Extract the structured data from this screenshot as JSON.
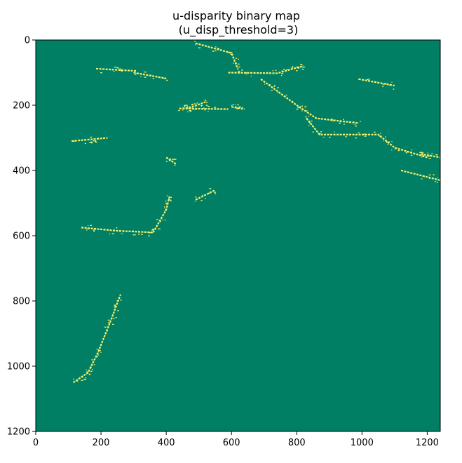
{
  "chart_data": {
    "type": "heatmap",
    "title_line1": "u-disparity binary map",
    "title_line2": "(u_disp_threshold=3)",
    "xlabel": "",
    "ylabel": "",
    "xlim": [
      0,
      1240
    ],
    "ylim": [
      1200,
      0
    ],
    "x_ticks": [
      "0",
      "200",
      "400",
      "600",
      "800",
      "1000",
      "1200"
    ],
    "y_ticks": [
      "0",
      "200",
      "400",
      "600",
      "800",
      "1000",
      "1200"
    ],
    "background_color": "#007f64",
    "foreground_color": "#f7f06a",
    "binary_values": [
      0,
      1
    ],
    "detected_segments": [
      {
        "name": "upper-left-short-line",
        "points": [
          [
            185,
            88
          ],
          [
            310,
            95
          ]
        ]
      },
      {
        "name": "left-cluster-1",
        "points": [
          [
            300,
            100
          ],
          [
            400,
            118
          ]
        ]
      },
      {
        "name": "mid-line-200",
        "points": [
          [
            440,
            210
          ],
          [
            590,
            212
          ]
        ]
      },
      {
        "name": "mid-line-205",
        "points": [
          [
            600,
            205
          ],
          [
            640,
            212
          ]
        ]
      },
      {
        "name": "left-horizontal-300",
        "points": [
          [
            110,
            310
          ],
          [
            220,
            300
          ]
        ]
      },
      {
        "name": "top-center-peak",
        "points": [
          [
            590,
            100
          ],
          [
            740,
            102
          ],
          [
            800,
            85
          ],
          [
            820,
            80
          ]
        ]
      },
      {
        "name": "top-center-rise",
        "points": [
          [
            490,
            10
          ],
          [
            600,
            40
          ],
          [
            620,
            90
          ]
        ]
      },
      {
        "name": "diagonal-right-1",
        "points": [
          [
            690,
            120
          ],
          [
            800,
            200
          ],
          [
            860,
            240
          ],
          [
            990,
            255
          ]
        ]
      },
      {
        "name": "diagonal-right-2",
        "points": [
          [
            830,
            240
          ],
          [
            870,
            290
          ],
          [
            1050,
            290
          ],
          [
            1100,
            330
          ],
          [
            1200,
            360
          ]
        ]
      },
      {
        "name": "right-tail",
        "points": [
          [
            1120,
            400
          ],
          [
            1240,
            430
          ]
        ]
      },
      {
        "name": "mid-left-blob",
        "points": [
          [
            400,
            360
          ],
          [
            430,
            380
          ]
        ]
      },
      {
        "name": "mid-rise",
        "points": [
          [
            450,
            210
          ],
          [
            480,
            205
          ],
          [
            520,
            190
          ]
        ]
      },
      {
        "name": "center-small-diag",
        "points": [
          [
            490,
            490
          ],
          [
            550,
            460
          ]
        ]
      },
      {
        "name": "left-long-600",
        "points": [
          [
            140,
            575
          ],
          [
            250,
            585
          ],
          [
            360,
            590
          ]
        ]
      },
      {
        "name": "left-rise-500",
        "points": [
          [
            360,
            590
          ],
          [
            400,
            520
          ],
          [
            410,
            480
          ]
        ]
      },
      {
        "name": "lower-left-diag",
        "points": [
          [
            115,
            1050
          ],
          [
            160,
            1020
          ],
          [
            190,
            960
          ],
          [
            230,
            860
          ],
          [
            260,
            780
          ]
        ]
      },
      {
        "name": "right-edge-top",
        "points": [
          [
            990,
            120
          ],
          [
            1100,
            140
          ]
        ]
      },
      {
        "name": "right-edge-mid",
        "points": [
          [
            1180,
            350
          ],
          [
            1240,
            360
          ]
        ]
      }
    ]
  }
}
